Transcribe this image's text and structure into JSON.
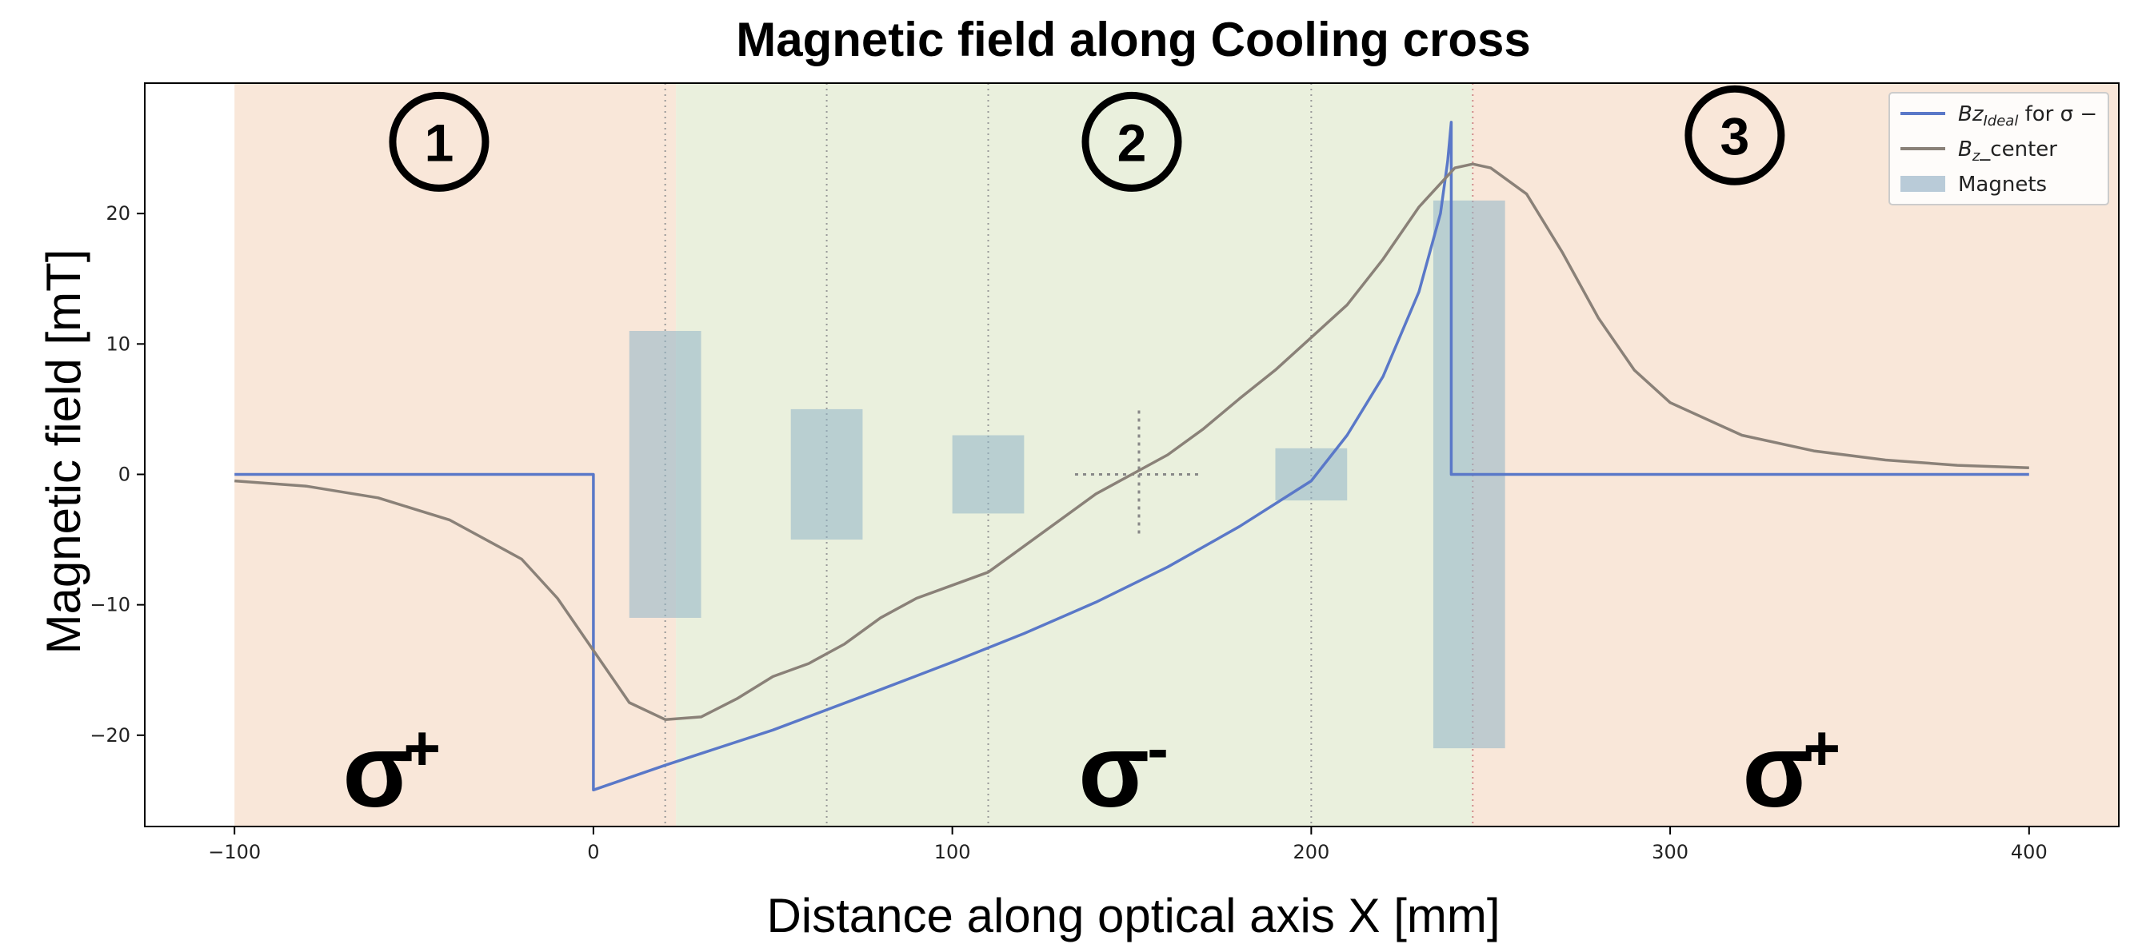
{
  "chart_data": {
    "type": "line",
    "title": "Magnetic field along Cooling cross",
    "xlabel": "Distance along optical axis X [mm]",
    "ylabel": "Magnetic field [mT]",
    "xlim": [
      -125,
      425
    ],
    "ylim": [
      -27,
      30
    ],
    "x_ticks": [
      -100,
      0,
      100,
      200,
      300,
      400
    ],
    "y_ticks": [
      -20,
      -10,
      0,
      10,
      20
    ],
    "grid": false,
    "legend_position": "top-right",
    "legend": [
      {
        "label_main": "Bz",
        "label_sub": "Ideal",
        "label_rest": " for σ −",
        "kind": "line",
        "color": "#5a78c8"
      },
      {
        "label_main": "B",
        "label_sub": "z",
        "label_rest": "_center",
        "kind": "line",
        "color": "#8a8178"
      },
      {
        "label_main": "Magnets",
        "label_sub": "",
        "label_rest": "",
        "kind": "patch",
        "color": "#b9cbd8"
      }
    ],
    "series": [
      {
        "name": "Bz_Ideal for σ −",
        "color": "#5a78c8",
        "points": [
          [
            -100,
            0
          ],
          [
            0,
            0
          ],
          [
            0,
            -24.2
          ],
          [
            20,
            -22.3
          ],
          [
            50,
            -19.6
          ],
          [
            80,
            -16.5
          ],
          [
            100,
            -14.4
          ],
          [
            120,
            -12.2
          ],
          [
            140,
            -9.8
          ],
          [
            160,
            -7.1
          ],
          [
            180,
            -4.0
          ],
          [
            200,
            -0.5
          ],
          [
            210,
            3.0
          ],
          [
            220,
            7.5
          ],
          [
            230,
            14.0
          ],
          [
            236,
            20.0
          ],
          [
            238,
            24.0
          ],
          [
            239,
            27.0
          ],
          [
            239,
            0
          ],
          [
            400,
            0
          ]
        ]
      },
      {
        "name": "B_z_center",
        "color": "#8a8178",
        "points": [
          [
            -100,
            -0.5
          ],
          [
            -80,
            -0.9
          ],
          [
            -60,
            -1.8
          ],
          [
            -40,
            -3.5
          ],
          [
            -20,
            -6.5
          ],
          [
            -10,
            -9.5
          ],
          [
            0,
            -13.5
          ],
          [
            10,
            -17.5
          ],
          [
            20,
            -18.8
          ],
          [
            30,
            -18.6
          ],
          [
            40,
            -17.2
          ],
          [
            50,
            -15.5
          ],
          [
            60,
            -14.5
          ],
          [
            70,
            -13.0
          ],
          [
            80,
            -11.0
          ],
          [
            90,
            -9.5
          ],
          [
            100,
            -8.5
          ],
          [
            110,
            -7.5
          ],
          [
            120,
            -5.5
          ],
          [
            130,
            -3.5
          ],
          [
            140,
            -1.5
          ],
          [
            150,
            0.0
          ],
          [
            160,
            1.5
          ],
          [
            170,
            3.5
          ],
          [
            180,
            5.8
          ],
          [
            190,
            8.0
          ],
          [
            200,
            10.5
          ],
          [
            210,
            13.0
          ],
          [
            220,
            16.5
          ],
          [
            230,
            20.5
          ],
          [
            240,
            23.5
          ],
          [
            245,
            23.8
          ],
          [
            250,
            23.5
          ],
          [
            260,
            21.5
          ],
          [
            270,
            17.0
          ],
          [
            280,
            12.0
          ],
          [
            290,
            8.0
          ],
          [
            300,
            5.5
          ],
          [
            320,
            3.0
          ],
          [
            340,
            1.8
          ],
          [
            360,
            1.1
          ],
          [
            380,
            0.7
          ],
          [
            400,
            0.5
          ]
        ]
      }
    ],
    "magnets": [
      {
        "x0": 10,
        "x1": 30,
        "y0": -11,
        "y1": 11
      },
      {
        "x0": 55,
        "x1": 75,
        "y0": -5,
        "y1": 5
      },
      {
        "x0": 100,
        "x1": 120,
        "y0": -3,
        "y1": 3
      },
      {
        "x0": 190,
        "x1": 210,
        "y0": -2,
        "y1": 2
      },
      {
        "x0": 234,
        "x1": 254,
        "y0": -21,
        "y1": 21
      }
    ],
    "regions": [
      {
        "x0": -100,
        "x1": 23,
        "color": "#f7dfcc"
      },
      {
        "x0": 23,
        "x1": 245,
        "color": "#e3ebd2"
      },
      {
        "x0": 245,
        "x1": 425,
        "color": "#f7dfcc"
      }
    ],
    "vlines": [
      {
        "x": 20,
        "color": "#999999"
      },
      {
        "x": 65,
        "color": "#999999"
      },
      {
        "x": 110,
        "color": "#999999"
      },
      {
        "x": 200,
        "color": "#999999"
      },
      {
        "x": 245,
        "color": "#d08a8a"
      }
    ],
    "crosshair": {
      "x": 152,
      "y": 0
    },
    "region_labels": [
      {
        "text": "1",
        "x": -43,
        "y": 25.5
      },
      {
        "text": "2",
        "x": 150,
        "y": 25.5
      },
      {
        "text": "3",
        "x": 318,
        "y": 26.0
      }
    ],
    "polarization_labels": [
      {
        "base": "σ",
        "sup": "+",
        "x": -60,
        "y": -23
      },
      {
        "base": "σ",
        "sup": "-",
        "x": 145,
        "y": -23
      },
      {
        "base": "σ",
        "sup": "+",
        "x": 330,
        "y": -23
      }
    ]
  }
}
